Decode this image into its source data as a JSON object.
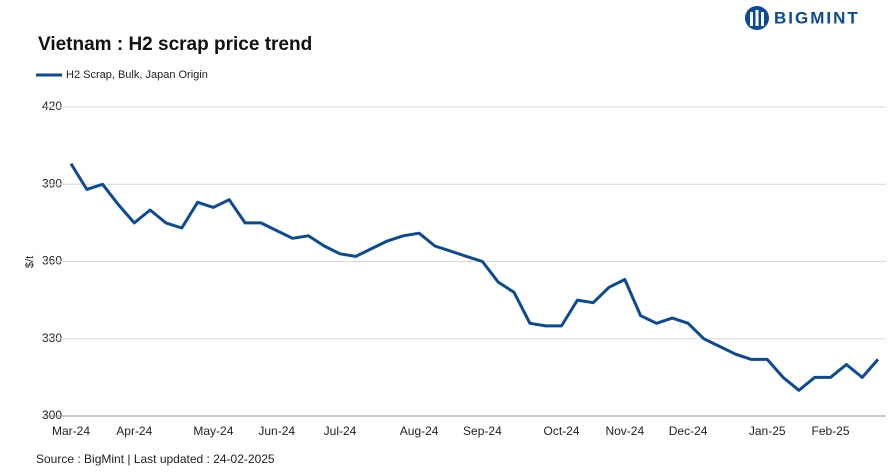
{
  "brand": "BIGMINT",
  "chart_data": {
    "type": "line",
    "title": "Vietnam : H2 scrap price trend",
    "y_label": "$/t",
    "source": "Source : BigMint | Last updated : 24-02-2025",
    "categories": [
      "Mar-24",
      null,
      null,
      null,
      "Apr-24",
      null,
      null,
      null,
      null,
      "May-24",
      null,
      null,
      null,
      "Jun-24",
      null,
      null,
      null,
      "Jul-24",
      null,
      null,
      null,
      null,
      "Aug-24",
      null,
      null,
      null,
      "Sep-24",
      null,
      null,
      null,
      null,
      "Oct-24",
      null,
      null,
      null,
      "Nov-24",
      null,
      null,
      null,
      "Dec-24",
      null,
      null,
      null,
      null,
      "Jan-25",
      null,
      null,
      null,
      "Feb-25",
      null,
      null,
      null
    ],
    "series": [
      {
        "name": "H2 Scrap, Bulk, Japan Origin",
        "color": "#0b4a94",
        "values": [
          398,
          388,
          390,
          382,
          375,
          380,
          375,
          373,
          383,
          381,
          384,
          375,
          375,
          372,
          369,
          370,
          366,
          363,
          362,
          365,
          368,
          370,
          371,
          366,
          364,
          362,
          360,
          352,
          348,
          336,
          335,
          335,
          345,
          344,
          350,
          353,
          339,
          336,
          338,
          336,
          330,
          327,
          324,
          322,
          322,
          315,
          310,
          315,
          315,
          320,
          315,
          322
        ]
      }
    ],
    "ylim": [
      300,
      420
    ],
    "yticks": [
      300,
      330,
      360,
      390,
      420
    ],
    "grid": true,
    "legend": "top-left"
  }
}
